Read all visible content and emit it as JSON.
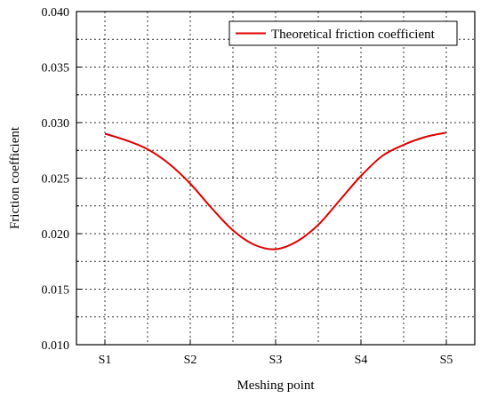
{
  "chart_data": {
    "type": "line",
    "xlabel": "Meshing point",
    "ylabel": "Friction coefficient",
    "x_tick_labels": [
      "S1",
      "S2",
      "S3",
      "S4",
      "S5"
    ],
    "y_tick_labels": [
      "0.010",
      "0.015",
      "0.020",
      "0.025",
      "0.030",
      "0.035",
      "0.040"
    ],
    "ylim": [
      0.01,
      0.04
    ],
    "xlim": [
      1,
      5
    ],
    "grid": true,
    "legend_position": "top-right",
    "series": [
      {
        "name": "Theoretical friction coefficient",
        "color": "#e00000",
        "x": [
          1.0,
          1.25,
          1.5,
          1.75,
          2.0,
          2.25,
          2.5,
          2.75,
          3.0,
          3.25,
          3.5,
          3.75,
          4.0,
          4.25,
          4.5,
          4.75,
          5.0
        ],
        "y": [
          0.029,
          0.0284,
          0.0276,
          0.0263,
          0.0245,
          0.0223,
          0.0203,
          0.019,
          0.0186,
          0.0193,
          0.0208,
          0.023,
          0.0252,
          0.027,
          0.028,
          0.0287,
          0.0291
        ]
      }
    ]
  }
}
